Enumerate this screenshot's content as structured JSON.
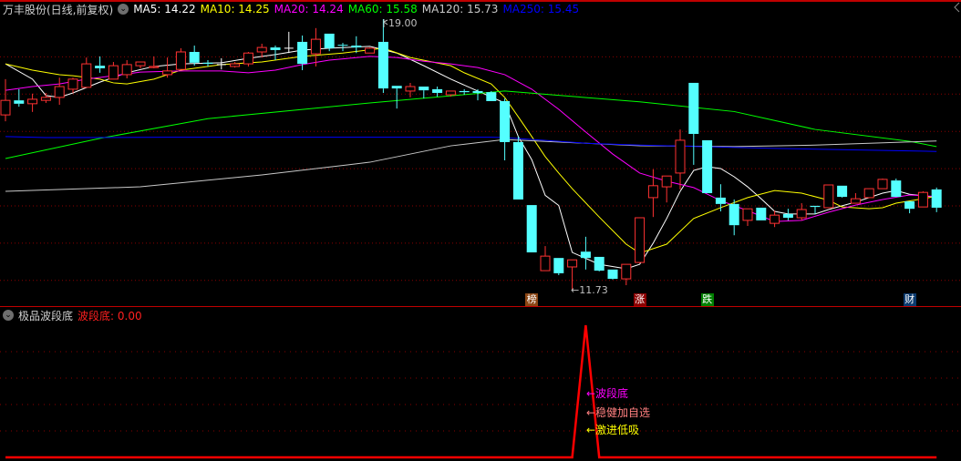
{
  "header": {
    "title": "万丰股份(日线,前复权)",
    "ma_labels": [
      {
        "text": "MA5: 14.22",
        "color": "#ffffff"
      },
      {
        "text": "MA10: 14.25",
        "color": "#ffff00"
      },
      {
        "text": "MA20: 14.24",
        "color": "#ff00ff"
      },
      {
        "text": "MA60: 15.58",
        "color": "#00ff00"
      },
      {
        "text": "MA120: 15.73",
        "color": "#c8c8c8"
      },
      {
        "text": "MA250: 15.45",
        "color": "#0000ff"
      }
    ]
  },
  "annotations": {
    "high_label": "19.00",
    "low_label": "11.73",
    "arrow": "←"
  },
  "markers": [
    {
      "text": "榜",
      "index": 39,
      "color": "#8b4513"
    },
    {
      "text": "涨",
      "index": 47,
      "color": "#8b0000"
    },
    {
      "text": "跌",
      "index": 52,
      "color": "#008000"
    },
    {
      "text": "财",
      "index": 67,
      "color": "#0b3a6e"
    }
  ],
  "sub_panel": {
    "indicator_name": "极品波段底",
    "value_label": "波段底: 0.00",
    "signals": [
      {
        "text": "←波段底",
        "color": "#ff00ff"
      },
      {
        "text": "←稳健加自选",
        "color": "#ff8080"
      },
      {
        "text": "←激进低吸",
        "color": "#ffff00"
      }
    ]
  },
  "colors": {
    "up": "#ff3232",
    "down": "#54ffff",
    "doji": "#ffffff",
    "grid": "#8b0000",
    "border": "#c00000",
    "indicator": "#ff0000"
  },
  "chart_data": [
    {
      "type": "candlestick",
      "ylim": [
        11.5,
        19.5
      ],
      "grid": true,
      "grid_levels": [
        18,
        17,
        16,
        15,
        14,
        13,
        12
      ],
      "ohlc_fields": [
        "open",
        "high",
        "low",
        "close"
      ],
      "candles": [
        [
          16.43,
          17.39,
          16.26,
          16.82
        ],
        [
          16.82,
          17.12,
          16.65,
          16.73
        ],
        [
          16.73,
          17.0,
          16.51,
          16.85
        ],
        [
          16.82,
          17.02,
          16.75,
          16.9
        ],
        [
          16.9,
          17.43,
          16.7,
          17.19
        ],
        [
          17.12,
          17.43,
          17.02,
          17.39
        ],
        [
          17.17,
          17.97,
          17.17,
          17.8
        ],
        [
          17.75,
          18.0,
          17.56,
          17.68
        ],
        [
          17.39,
          17.85,
          17.39,
          17.75
        ],
        [
          17.51,
          17.9,
          17.41,
          17.78
        ],
        [
          17.75,
          17.85,
          17.68,
          17.85
        ],
        [
          17.7,
          18.0,
          17.68,
          17.73
        ],
        [
          17.51,
          17.97,
          17.43,
          17.61
        ],
        [
          17.65,
          18.22,
          17.65,
          18.12
        ],
        [
          18.12,
          18.29,
          17.75,
          17.83
        ],
        [
          17.83,
          17.9,
          17.73,
          17.8
        ],
        [
          17.78,
          17.95,
          17.65,
          17.78
        ],
        [
          17.73,
          17.85,
          17.7,
          17.8
        ],
        [
          17.8,
          18.12,
          17.73,
          18.09
        ],
        [
          18.12,
          18.34,
          17.97,
          18.24
        ],
        [
          18.24,
          18.29,
          17.9,
          18.17
        ],
        [
          18.22,
          18.66,
          18.09,
          18.22
        ],
        [
          18.39,
          18.56,
          17.63,
          17.8
        ],
        [
          18.07,
          18.76,
          17.73,
          18.46
        ],
        [
          18.61,
          18.61,
          18.14,
          18.22
        ],
        [
          18.31,
          18.36,
          18.14,
          18.29
        ],
        [
          18.29,
          18.54,
          18.09,
          18.24
        ],
        [
          18.09,
          18.24,
          18.09,
          18.22
        ],
        [
          18.39,
          19.0,
          17.02,
          17.14
        ],
        [
          17.21,
          17.21,
          16.6,
          17.14
        ],
        [
          17.07,
          17.29,
          16.9,
          17.19
        ],
        [
          17.19,
          17.19,
          16.87,
          17.09
        ],
        [
          17.12,
          17.19,
          16.92,
          17.02
        ],
        [
          16.97,
          17.07,
          16.92,
          17.07
        ],
        [
          17.07,
          17.12,
          16.97,
          17.04
        ],
        [
          17.07,
          17.12,
          16.82,
          17.02
        ],
        [
          17.04,
          17.07,
          16.8,
          16.8
        ],
        [
          16.8,
          16.87,
          15.21,
          15.7
        ],
        [
          15.7,
          15.85,
          14.16,
          14.16
        ],
        [
          14.01,
          14.01,
          12.74,
          12.74
        ],
        [
          12.25,
          12.91,
          12.25,
          12.64
        ],
        [
          12.59,
          12.59,
          12.13,
          12.18
        ],
        [
          12.35,
          12.54,
          11.73,
          12.54
        ],
        [
          12.76,
          13.16,
          12.28,
          12.59
        ],
        [
          12.62,
          12.62,
          12.23,
          12.25
        ],
        [
          12.28,
          12.28,
          12.01,
          12.03
        ],
        [
          12.03,
          12.42,
          11.86,
          12.42
        ],
        [
          12.47,
          13.67,
          12.45,
          13.67
        ],
        [
          14.21,
          14.97,
          13.69,
          14.53
        ],
        [
          14.5,
          14.79,
          14.08,
          14.79
        ],
        [
          14.87,
          16.04,
          14.43,
          15.75
        ],
        [
          17.29,
          17.29,
          15.09,
          15.92
        ],
        [
          15.75,
          15.75,
          14.33,
          14.33
        ],
        [
          14.21,
          14.57,
          13.84,
          14.04
        ],
        [
          14.04,
          14.16,
          13.2,
          13.47
        ],
        [
          13.6,
          13.91,
          13.45,
          13.91
        ],
        [
          13.94,
          13.94,
          13.6,
          13.6
        ],
        [
          13.52,
          13.86,
          13.42,
          13.74
        ],
        [
          13.77,
          13.91,
          13.6,
          13.67
        ],
        [
          13.67,
          14.06,
          13.6,
          13.89
        ],
        [
          13.99,
          13.99,
          13.77,
          13.96
        ],
        [
          13.94,
          14.55,
          13.94,
          14.55
        ],
        [
          14.53,
          14.53,
          14.21,
          14.23
        ],
        [
          14.06,
          14.33,
          14.06,
          14.18
        ],
        [
          14.21,
          14.45,
          14.21,
          14.45
        ],
        [
          14.45,
          14.72,
          14.45,
          14.7
        ],
        [
          14.67,
          14.72,
          14.23,
          14.23
        ],
        [
          14.11,
          14.11,
          13.79,
          13.91
        ],
        [
          13.96,
          14.38,
          13.96,
          14.35
        ],
        [
          14.43,
          14.48,
          13.82,
          13.94
        ]
      ],
      "moving_averages": [
        {
          "name": "MA5",
          "color": "#ffffff",
          "points": [
            [
              0,
              17.8
            ],
            [
              2,
              17.39
            ],
            [
              3,
              16.95
            ],
            [
              4,
              16.9
            ],
            [
              5,
              17.02
            ],
            [
              7,
              17.31
            ],
            [
              9,
              17.56
            ],
            [
              11,
              17.73
            ],
            [
              13,
              17.8
            ],
            [
              16,
              17.83
            ],
            [
              18,
              17.95
            ],
            [
              20,
              18.05
            ],
            [
              22,
              18.17
            ],
            [
              24,
              18.22
            ],
            [
              27,
              18.27
            ],
            [
              29,
              18.09
            ],
            [
              31,
              17.75
            ],
            [
              33,
              17.39
            ],
            [
              35,
              17.07
            ],
            [
              37,
              16.75
            ],
            [
              38,
              15.85
            ],
            [
              39,
              15.23
            ],
            [
              40,
              14.27
            ],
            [
              41,
              14.0
            ],
            [
              42,
              12.74
            ],
            [
              44,
              12.42
            ],
            [
              46,
              12.3
            ],
            [
              47,
              12.42
            ],
            [
              48,
              12.99
            ],
            [
              49,
              13.65
            ],
            [
              50,
              14.38
            ],
            [
              51,
              14.94
            ],
            [
              52,
              15.04
            ],
            [
              53,
              14.99
            ],
            [
              54,
              14.77
            ],
            [
              55,
              14.5
            ],
            [
              56,
              14.18
            ],
            [
              57,
              13.84
            ],
            [
              58,
              13.77
            ],
            [
              60,
              13.77
            ],
            [
              61,
              13.89
            ],
            [
              62,
              13.99
            ],
            [
              63,
              14.09
            ],
            [
              64,
              14.21
            ],
            [
              65,
              14.33
            ],
            [
              66,
              14.4
            ],
            [
              67,
              14.3
            ],
            [
              69,
              14.22
            ]
          ]
        },
        {
          "name": "MA10",
          "color": "#ffff00",
          "points": [
            [
              0,
              17.8
            ],
            [
              2,
              17.63
            ],
            [
              4,
              17.51
            ],
            [
              5,
              17.48
            ],
            [
              7,
              17.39
            ],
            [
              8,
              17.29
            ],
            [
              9,
              17.26
            ],
            [
              11,
              17.39
            ],
            [
              13,
              17.63
            ],
            [
              16,
              17.78
            ],
            [
              19,
              17.85
            ],
            [
              22,
              18.0
            ],
            [
              25,
              18.09
            ],
            [
              28,
              18.22
            ],
            [
              30,
              17.97
            ],
            [
              33,
              17.75
            ],
            [
              34,
              17.56
            ],
            [
              36,
              17.26
            ],
            [
              37,
              16.9
            ],
            [
              38,
              16.38
            ],
            [
              39,
              15.85
            ],
            [
              40,
              15.31
            ],
            [
              41,
              14.87
            ],
            [
              42,
              14.45
            ],
            [
              44,
              13.69
            ],
            [
              46,
              12.96
            ],
            [
              47,
              12.72
            ],
            [
              49,
              12.96
            ],
            [
              51,
              13.65
            ],
            [
              53,
              13.94
            ],
            [
              55,
              14.21
            ],
            [
              57,
              14.4
            ],
            [
              59,
              14.33
            ],
            [
              61,
              14.14
            ],
            [
              62,
              13.96
            ],
            [
              64,
              13.91
            ],
            [
              65,
              13.94
            ],
            [
              66,
              14.06
            ],
            [
              68,
              14.18
            ],
            [
              69,
              14.25
            ]
          ]
        },
        {
          "name": "MA20",
          "color": "#ff00ff",
          "points": [
            [
              0,
              17.09
            ],
            [
              2,
              17.19
            ],
            [
              4,
              17.26
            ],
            [
              6,
              17.39
            ],
            [
              8,
              17.48
            ],
            [
              10,
              17.58
            ],
            [
              13,
              17.61
            ],
            [
              16,
              17.61
            ],
            [
              18,
              17.56
            ],
            [
              20,
              17.63
            ],
            [
              22,
              17.78
            ],
            [
              24,
              17.9
            ],
            [
              27,
              18.0
            ],
            [
              29,
              17.97
            ],
            [
              31,
              17.87
            ],
            [
              33,
              17.8
            ],
            [
              35,
              17.7
            ],
            [
              37,
              17.51
            ],
            [
              39,
              17.12
            ],
            [
              41,
              16.58
            ],
            [
              43,
              15.97
            ],
            [
              45,
              15.38
            ],
            [
              47,
              14.87
            ],
            [
              49,
              14.65
            ],
            [
              51,
              14.48
            ],
            [
              53,
              14.13
            ],
            [
              55,
              13.86
            ],
            [
              57,
              13.57
            ],
            [
              59,
              13.6
            ],
            [
              61,
              13.82
            ],
            [
              63,
              14.01
            ],
            [
              65,
              14.16
            ],
            [
              67,
              14.28
            ],
            [
              69,
              14.24
            ]
          ]
        },
        {
          "name": "MA60",
          "color": "#00ff00",
          "points": [
            [
              0,
              15.26
            ],
            [
              7,
              15.8
            ],
            [
              15,
              16.33
            ],
            [
              27,
              16.75
            ],
            [
              37,
              17.07
            ],
            [
              47,
              16.78
            ],
            [
              54,
              16.52
            ],
            [
              60,
              16.04
            ],
            [
              67,
              15.72
            ],
            [
              69,
              15.58
            ]
          ]
        },
        {
          "name": "MA120",
          "color": "#c8c8c8",
          "points": [
            [
              0,
              14.38
            ],
            [
              10,
              14.5
            ],
            [
              19,
              14.82
            ],
            [
              27,
              15.16
            ],
            [
              33,
              15.6
            ],
            [
              37,
              15.77
            ],
            [
              47,
              15.6
            ],
            [
              54,
              15.58
            ],
            [
              60,
              15.62
            ],
            [
              69,
              15.73
            ]
          ]
        },
        {
          "name": "MA250",
          "color": "#0000ff",
          "points": [
            [
              0,
              15.85
            ],
            [
              3,
              15.82
            ],
            [
              12,
              15.83
            ],
            [
              36,
              15.83
            ],
            [
              37,
              15.82
            ],
            [
              43,
              15.67
            ],
            [
              47,
              15.62
            ],
            [
              57,
              15.53
            ],
            [
              69,
              15.45
            ]
          ]
        }
      ]
    },
    {
      "type": "line",
      "name": "波段底",
      "ylim": [
        0,
        100
      ],
      "grid": true,
      "values": [
        0,
        0,
        0,
        0,
        0,
        0,
        0,
        0,
        0,
        0,
        0,
        0,
        0,
        0,
        0,
        0,
        0,
        0,
        0,
        0,
        0,
        0,
        0,
        0,
        0,
        0,
        0,
        0,
        0,
        0,
        0,
        0,
        0,
        0,
        0,
        0,
        0,
        0,
        0,
        0,
        0,
        0,
        0,
        100,
        0,
        0,
        0,
        0,
        0,
        0,
        0,
        0,
        0,
        0,
        0,
        0,
        0,
        0,
        0,
        0,
        0,
        0,
        0,
        0,
        0,
        0,
        0,
        0,
        0,
        0
      ]
    }
  ]
}
